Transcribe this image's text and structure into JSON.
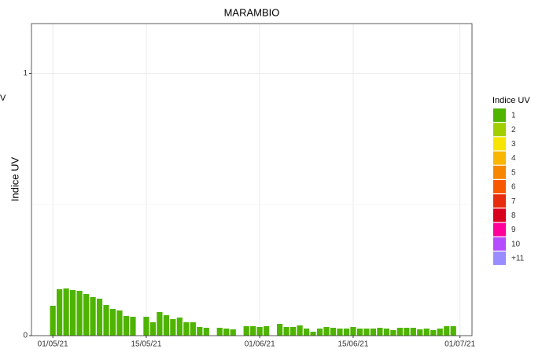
{
  "chart_data": {
    "type": "bar",
    "title": "MARAMBIO",
    "y_label": "Indice UV",
    "annotation": "V",
    "x": [
      0,
      1,
      2,
      3,
      4,
      5,
      6,
      7,
      8,
      9,
      10,
      11,
      12,
      13,
      14,
      15,
      16,
      17,
      18,
      19,
      20,
      21,
      22,
      23,
      24,
      25,
      26,
      27,
      28,
      29,
      30,
      31,
      32,
      33,
      34,
      35,
      36,
      37,
      38,
      39,
      40,
      41,
      42,
      43,
      44,
      45,
      46,
      47,
      48,
      49,
      50,
      51,
      52,
      53,
      54,
      55,
      56,
      57,
      58,
      59,
      60
    ],
    "values": [
      0.114,
      0.177,
      0.18,
      0.174,
      0.171,
      0.159,
      0.147,
      0.141,
      0.117,
      0.102,
      0.096,
      0.075,
      0.072,
      null,
      0.072,
      0.051,
      0.09,
      0.078,
      0.063,
      0.069,
      0.051,
      0.051,
      0.033,
      0.03,
      null,
      0.03,
      0.027,
      0.024,
      null,
      0.036,
      0.036,
      0.033,
      0.036,
      null,
      0.045,
      0.033,
      0.033,
      0.039,
      0.027,
      0.015,
      0.027,
      0.033,
      0.03,
      0.027,
      0.027,
      0.033,
      0.027,
      0.027,
      0.027,
      0.03,
      0.027,
      0.021,
      0.03,
      0.03,
      0.03,
      0.024,
      0.027,
      0.021,
      0.027,
      0.036,
      0.036
    ],
    "color": "#4eb400",
    "xlim": [
      -3.2,
      62.8
    ],
    "xticks": [
      {
        "value": 0,
        "label": "01/05/21"
      },
      {
        "value": 14,
        "label": "15/05/21"
      },
      {
        "value": 31,
        "label": "01/06/21"
      },
      {
        "value": 45,
        "label": "15/06/21"
      },
      {
        "value": 61,
        "label": "01/07/21"
      }
    ],
    "ylim": [
      0,
      1.19
    ],
    "yticks": [
      0,
      1
    ],
    "minor_yticks": [
      0.5
    ],
    "grid": true,
    "legend": {
      "title": "Indice UV",
      "items": [
        {
          "label": "1",
          "color": "#4eb400"
        },
        {
          "label": "2",
          "color": "#a0ce00"
        },
        {
          "label": "3",
          "color": "#f7e400"
        },
        {
          "label": "4",
          "color": "#f8b600"
        },
        {
          "label": "5",
          "color": "#f88700"
        },
        {
          "label": "6",
          "color": "#f85900"
        },
        {
          "label": "7",
          "color": "#e82c0e"
        },
        {
          "label": "8",
          "color": "#d8001d"
        },
        {
          "label": "9",
          "color": "#ff0099"
        },
        {
          "label": "10",
          "color": "#b54cff"
        },
        {
          "label": "+11",
          "color": "#998cff"
        }
      ]
    }
  }
}
